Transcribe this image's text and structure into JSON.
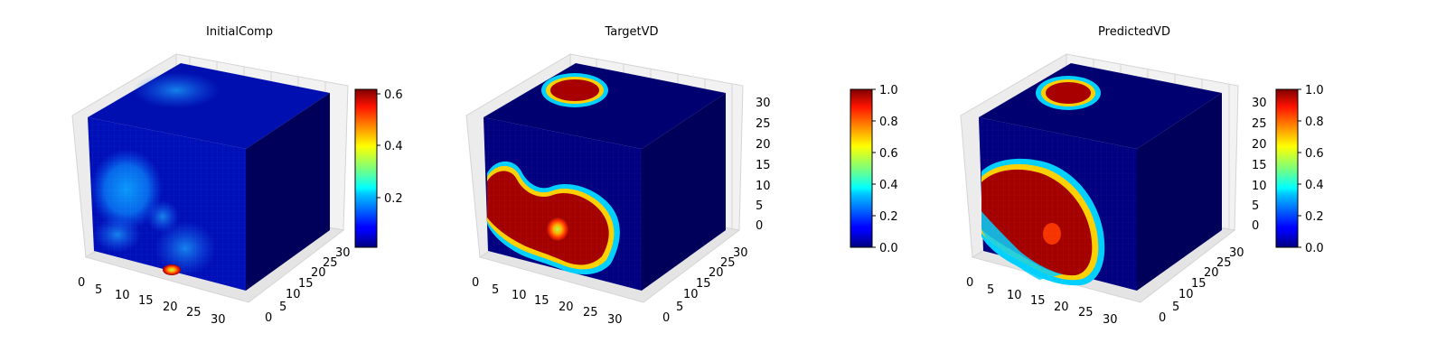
{
  "chart_data": [
    {
      "type": "heatmap",
      "title": "InitialComp",
      "axes": {
        "x_ticks": [
          "0",
          "5",
          "10",
          "15",
          "20",
          "25",
          "30"
        ],
        "y_ticks": [
          "0",
          "5",
          "10",
          "15",
          "20",
          "25",
          "30"
        ],
        "z_ticks": []
      },
      "colorbar": {
        "range": [
          0.02,
          0.62
        ],
        "ticks": [
          "0.2",
          "0.4",
          "0.6"
        ],
        "colormap": "jet"
      }
    },
    {
      "type": "heatmap",
      "title": "TargetVD",
      "axes": {
        "x_ticks": [
          "0",
          "5",
          "10",
          "15",
          "20",
          "25",
          "30"
        ],
        "y_ticks": [
          "0",
          "5",
          "10",
          "15",
          "20",
          "25",
          "30"
        ],
        "z_ticks": [
          "0",
          "5",
          "10",
          "15",
          "20",
          "25",
          "30"
        ]
      },
      "colorbar": {
        "range": [
          0.0,
          1.0
        ],
        "ticks": [
          "0.0",
          "0.2",
          "0.4",
          "0.6",
          "0.8",
          "1.0"
        ],
        "colormap": "jet"
      }
    },
    {
      "type": "heatmap",
      "title": "PredictedVD",
      "axes": {
        "x_ticks": [
          "0",
          "5",
          "10",
          "15",
          "20",
          "25",
          "30"
        ],
        "y_ticks": [
          "0",
          "5",
          "10",
          "15",
          "20",
          "25",
          "30"
        ],
        "z_ticks": [
          "0",
          "5",
          "10",
          "15",
          "20",
          "25",
          "30"
        ]
      },
      "colorbar": {
        "range": [
          0.0,
          1.0
        ],
        "ticks": [
          "0.0",
          "0.2",
          "0.4",
          "0.6",
          "0.8",
          "1.0"
        ],
        "colormap": "jet"
      }
    }
  ],
  "colors": {
    "background": "#ffffff",
    "cube_side": "#00005a",
    "cube_top": "#000088",
    "pane": "#ececec",
    "grid": "#cfcfcf"
  }
}
